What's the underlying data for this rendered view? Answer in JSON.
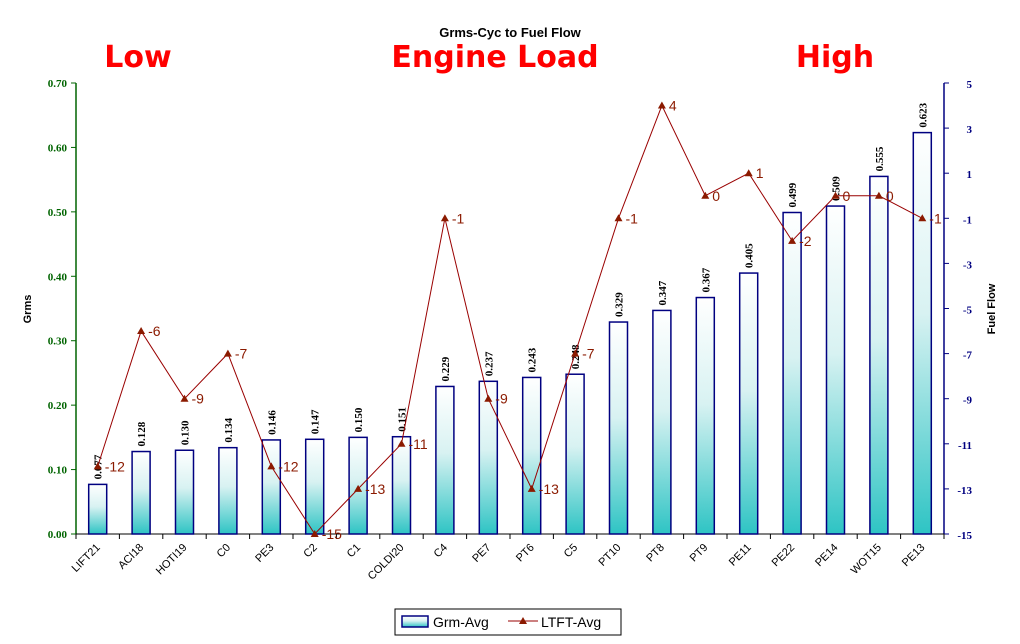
{
  "chart_data": {
    "type": "bar",
    "title": "Grms-Cyc to Fuel Flow",
    "zone_labels": {
      "low": "Low",
      "middle": "Engine Load",
      "high": "High"
    },
    "categories": [
      "LIFT21",
      "ACI18",
      "HOTI19",
      "C0",
      "PE3",
      "C2",
      "C1",
      "COLDI20",
      "C4",
      "PE7",
      "PT6",
      "C5",
      "PT10",
      "PT8",
      "PT9",
      "PE11",
      "PE22",
      "PE14",
      "WOT15",
      "PE13"
    ],
    "series": [
      {
        "name": "Grm-Avg",
        "type": "bar",
        "axis": "left",
        "values": [
          0.077,
          0.128,
          0.13,
          0.134,
          0.146,
          0.147,
          0.15,
          0.151,
          0.229,
          0.237,
          0.243,
          0.248,
          0.329,
          0.347,
          0.367,
          0.405,
          0.499,
          0.509,
          0.555,
          0.623
        ],
        "value_labels": [
          "0.077",
          "0.128",
          "0.130",
          "0.134",
          "0.146",
          "0.147",
          "0.150",
          "0.151",
          "0.229",
          "0.237",
          "0.243",
          "0.248",
          "0.329",
          "0.347",
          "0.367",
          "0.405",
          "0.499",
          "0.509",
          "0.555",
          "0.623"
        ]
      },
      {
        "name": "LTFT-Avg",
        "type": "line",
        "axis": "right",
        "values": [
          -12,
          -6,
          -9,
          -7,
          -12,
          -15,
          -13,
          -11,
          -1,
          -9,
          -13,
          -7,
          -1,
          4,
          0,
          1,
          -2,
          0,
          0,
          -1
        ],
        "value_labels": [
          "-12",
          "-6",
          "-9",
          "-7",
          "-12",
          "-15",
          "-13",
          "-11",
          "-1",
          "-9",
          "-13",
          "-7",
          "-1",
          "4",
          "0",
          "1",
          "-2",
          "0",
          "0",
          "-1"
        ]
      }
    ],
    "ylabel": "Grms",
    "y2label": "Fuel Flow",
    "ylim": [
      0,
      0.7
    ],
    "y2lim": [
      -15,
      5
    ],
    "yticks": [
      "0.00",
      "0.10",
      "0.20",
      "0.30",
      "0.40",
      "0.50",
      "0.60",
      "0.70"
    ],
    "y2ticks": [
      "-15",
      "-13",
      "-11",
      "-9",
      "-7",
      "-5",
      "-3",
      "-1",
      "1",
      "3",
      "5"
    ],
    "grid": false,
    "legend_position": "bottom-center",
    "colors": {
      "left_axis": "#006400",
      "right_axis": "#000080",
      "bar_edge": "#000080",
      "bar_top": "#ffffff",
      "bar_bottom": "#2ec4c4",
      "line": "#990000",
      "marker": "#8b1a00",
      "line_label": "#8b1a00",
      "zone_text": "#ff0000"
    }
  }
}
